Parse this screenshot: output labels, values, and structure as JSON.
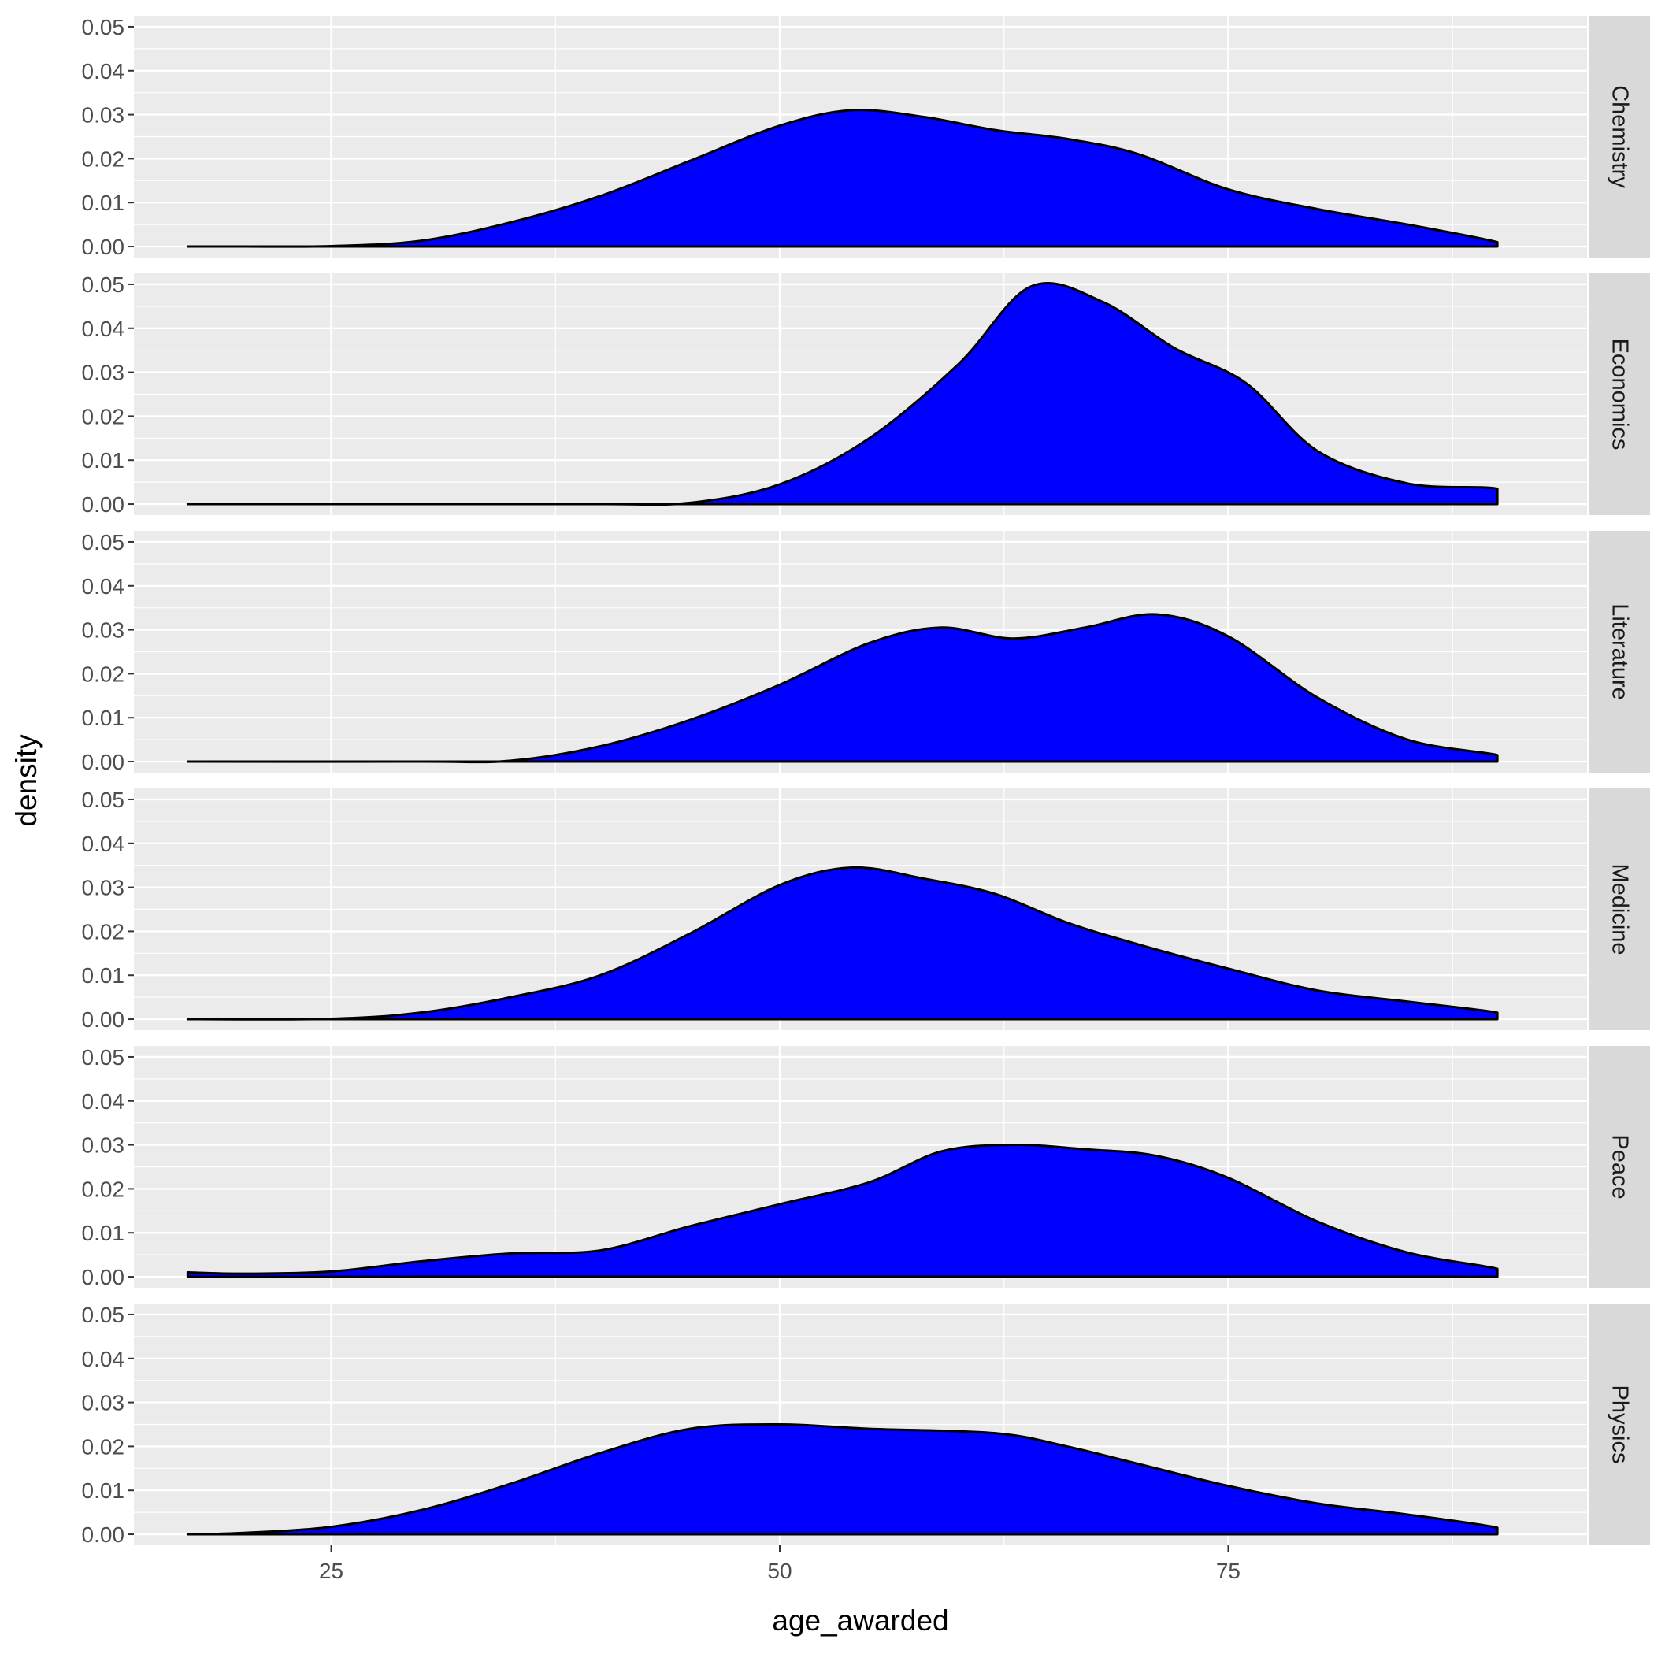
{
  "chart_data": {
    "type": "area",
    "chart_kind": "faceted density (one panel per category, shared axes)",
    "xlabel": "age_awarded",
    "ylabel": "density",
    "xlim": [
      14,
      95
    ],
    "ylim": [
      -0.0025,
      0.0525
    ],
    "xticks": [
      25,
      50,
      75
    ],
    "yticks": [
      0,
      0.01,
      0.02,
      0.03,
      0.04,
      0.05
    ],
    "ytick_labels": [
      "0.00",
      "0.01",
      "0.02",
      "0.03",
      "0.04",
      "0.05"
    ],
    "grid": true,
    "colors": {
      "fill": "#0000ff",
      "outline": "#000000",
      "panel_background": "#ebebeb",
      "grid_line": "#ffffff",
      "strip_background": "#d9d9d9"
    },
    "facets": [
      {
        "label": "Chemistry",
        "x": [
          17,
          20,
          25,
          30,
          35,
          40,
          45,
          50,
          54,
          58,
          62,
          66,
          70,
          75,
          80,
          85,
          90,
          90
        ],
        "y": [
          0,
          0,
          0.0001,
          0.0013,
          0.0055,
          0.0115,
          0.0195,
          0.0275,
          0.031,
          0.0295,
          0.0265,
          0.0245,
          0.021,
          0.013,
          0.0085,
          0.005,
          0.001,
          0
        ]
      },
      {
        "label": "Economics",
        "x": [
          17,
          30,
          40,
          45,
          50,
          55,
          60,
          64,
          68,
          72,
          76,
          80,
          85,
          90,
          90
        ],
        "y": [
          0,
          0,
          0,
          0.0003,
          0.0045,
          0.015,
          0.032,
          0.0495,
          0.046,
          0.0355,
          0.0275,
          0.012,
          0.0047,
          0.0035,
          0
        ]
      },
      {
        "label": "Literature",
        "x": [
          17,
          30,
          35,
          40,
          45,
          50,
          55,
          59,
          63,
          67,
          71,
          75,
          80,
          85,
          90,
          90
        ],
        "y": [
          0,
          0,
          0.0002,
          0.0035,
          0.0095,
          0.0175,
          0.027,
          0.0305,
          0.028,
          0.0305,
          0.0335,
          0.0285,
          0.0145,
          0.005,
          0.0015,
          0
        ]
      },
      {
        "label": "Medicine",
        "x": [
          17,
          25,
          30,
          35,
          40,
          45,
          50,
          54,
          58,
          62,
          66,
          70,
          75,
          80,
          85,
          90,
          90
        ],
        "y": [
          0,
          0.0001,
          0.0015,
          0.005,
          0.01,
          0.0195,
          0.0305,
          0.0345,
          0.032,
          0.0285,
          0.022,
          0.017,
          0.0115,
          0.0065,
          0.004,
          0.0015,
          0
        ]
      },
      {
        "label": "Peace",
        "x": [
          17,
          20,
          25,
          30,
          35,
          40,
          45,
          50,
          55,
          59,
          63,
          67,
          71,
          75,
          80,
          85,
          90,
          90
        ],
        "y": [
          0.001,
          0.0007,
          0.0012,
          0.0035,
          0.0053,
          0.006,
          0.0115,
          0.0165,
          0.0215,
          0.0285,
          0.03,
          0.029,
          0.0275,
          0.0225,
          0.0125,
          0.0055,
          0.0018,
          0
        ]
      },
      {
        "label": "Physics",
        "x": [
          17,
          20,
          25,
          30,
          35,
          40,
          45,
          50,
          55,
          62,
          66,
          70,
          75,
          80,
          85,
          90,
          90
        ],
        "y": [
          0,
          0.0003,
          0.0017,
          0.0055,
          0.0115,
          0.0185,
          0.024,
          0.025,
          0.024,
          0.023,
          0.02,
          0.016,
          0.011,
          0.007,
          0.0045,
          0.0015,
          0
        ]
      }
    ]
  }
}
